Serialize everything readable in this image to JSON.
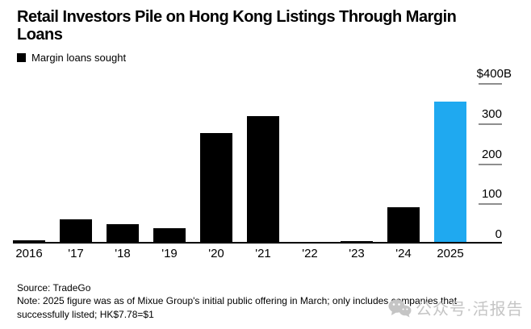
{
  "header": {
    "title_lines": [
      "Retail Investors Pile on Hong Kong Listings Through Margin",
      "Loans"
    ]
  },
  "legend": {
    "label": "Margin loans sought",
    "swatch_color": "#000000"
  },
  "chart_data": {
    "type": "bar",
    "title": "Retail Investors Pile on Hong Kong Listings Through Margin Loans",
    "categories": [
      "2016",
      "'17",
      "'18",
      "'19",
      "'20",
      "'21",
      "'22",
      "'23",
      "'24",
      "2025"
    ],
    "series": [
      {
        "name": "Margin loans sought",
        "values": [
          8,
          60,
          48,
          38,
          275,
          318,
          4,
          6,
          91,
          353
        ]
      }
    ],
    "unit": "US$ billions",
    "ylim": [
      0,
      400
    ],
    "yticks": [
      {
        "label": "$400B",
        "value": 400
      },
      {
        "label": "300",
        "value": 300
      },
      {
        "label": "200",
        "value": 200
      },
      {
        "label": "100",
        "value": 100
      },
      {
        "label": "0",
        "value": 0
      }
    ],
    "grid": false,
    "legend_position": "top-left",
    "y_axis_side": "right",
    "bar_color": "#000000",
    "highlight_category": "2025",
    "highlight_color": "#1FA9F0"
  },
  "footer": {
    "source": "Source: TradeGo",
    "note": "Note: 2025 figure was as of Mixue Group's initial public offering in March; only includes companies that successfully listed; HK$7.78=$1"
  },
  "watermark": {
    "icon": "wechat-icon",
    "text": "公众号·活报告",
    "color": "#c5c5c5"
  }
}
